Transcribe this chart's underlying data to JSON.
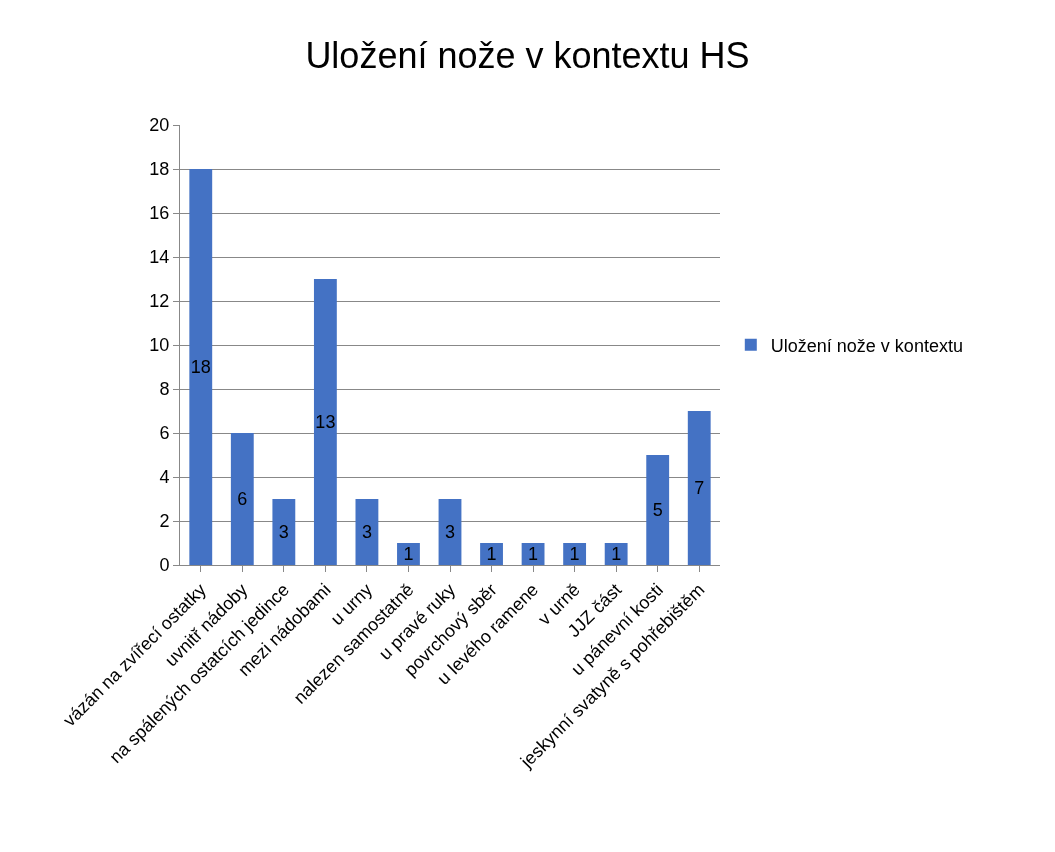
{
  "chart_data": {
    "type": "bar",
    "title": "Uložení nože v kontextu HS",
    "categories": [
      "vázán na zvířecí ostatky",
      "uvnitř nádoby",
      "na spálených ostatcích jedince",
      "mezi nádobami",
      "u urny",
      "nalezen samostatně",
      "u pravé ruky",
      "povrchový sběr",
      "u levého ramene",
      "v urně",
      "JJZ část",
      "u pánevní kosti",
      "jeskynní svatyně s pohřebištěm"
    ],
    "series": [
      {
        "name": "Uložení nože v kontextu",
        "color": "#4472c4",
        "values": [
          18,
          6,
          3,
          13,
          3,
          1,
          3,
          1,
          1,
          1,
          1,
          5,
          7
        ]
      }
    ],
    "ylim": [
      0,
      20
    ],
    "yticks": [
      0,
      2,
      4,
      6,
      8,
      10,
      12,
      14,
      16,
      18,
      20
    ],
    "grid": "y",
    "legend": "right",
    "data_labels": true
  }
}
